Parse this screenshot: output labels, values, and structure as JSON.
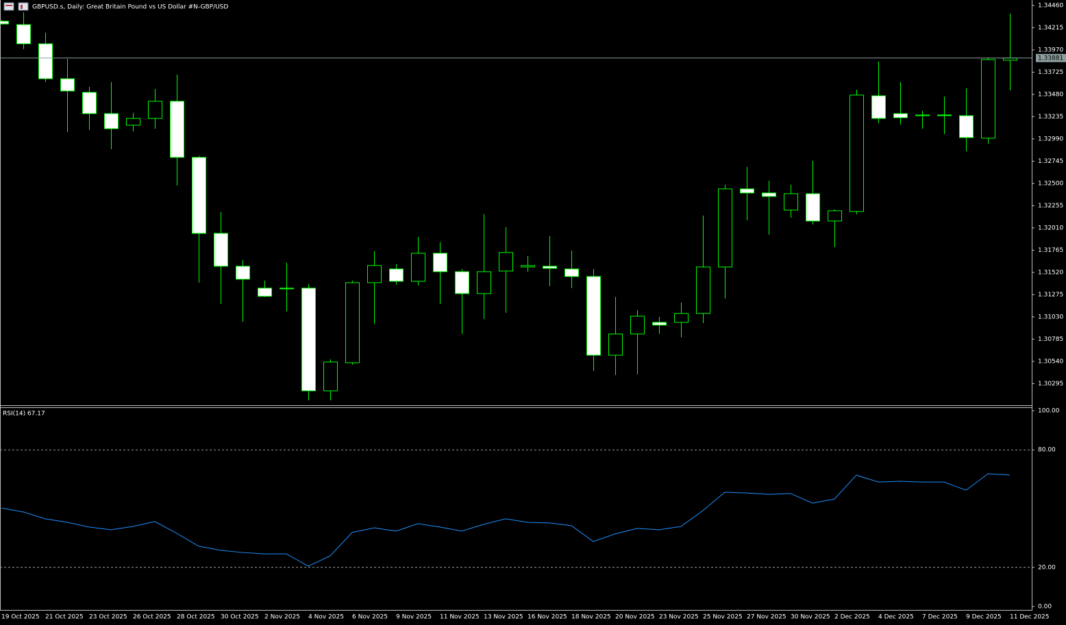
{
  "chart_data": [
    {
      "type": "candlestick",
      "title": "GBPUSD.s, Daily:  Great Britain Pound vs US Dollar #N-GBP/USD",
      "categories": [
        "19 Oct 2025",
        null,
        "21 Oct 2025",
        null,
        "23 Oct 2025",
        null,
        "26 Oct 2025",
        null,
        "28 Oct 2025",
        null,
        "30 Oct 2025",
        null,
        "2 Nov 2025",
        null,
        "4 Nov 2025",
        null,
        "6 Nov 2025",
        null,
        "9 Nov 2025",
        null,
        "11 Nov 2025",
        null,
        "13 Nov 2025",
        null,
        "16 Nov 2025",
        null,
        "18 Nov 2025",
        null,
        "20 Nov 2025",
        null,
        "23 Nov 2025",
        null,
        "25 Nov 2025",
        null,
        "27 Nov 2025",
        null,
        "30 Nov 2025",
        null,
        "2 Dec 2025",
        null,
        "4 Dec 2025",
        null,
        "7 Dec 2025",
        null,
        "9 Dec 2025",
        null,
        "11 Dec 2025"
      ],
      "open": [
        1.34287,
        1.34249,
        1.34038,
        1.33653,
        1.33503,
        1.33269,
        1.33141,
        1.33216,
        1.33405,
        1.32787,
        1.3195,
        1.31588,
        1.31347,
        1.31347,
        1.31347,
        1.30216,
        1.30525,
        1.31407,
        1.31558,
        1.31422,
        1.31731,
        1.31528,
        1.31287,
        1.31535,
        1.3158,
        1.31588,
        1.31558,
        1.31475,
        1.30608,
        1.30842,
        1.3097,
        1.3097,
        1.31068,
        1.3158,
        1.3244,
        1.32395,
        1.32206,
        1.32387,
        1.32086,
        1.32191,
        1.33465,
        1.33269,
        1.33246,
        1.33254,
        1.33246,
        1.32998,
        1.33857
      ],
      "high": [
        1.34302,
        1.34385,
        1.34158,
        1.33872,
        1.33563,
        1.33616,
        1.33277,
        1.3354,
        1.33699,
        1.32802,
        1.32184,
        1.31656,
        1.3143,
        1.31626,
        1.31392,
        1.30563,
        1.3143,
        1.31754,
        1.31611,
        1.31912,
        1.31852,
        1.31558,
        1.32161,
        1.32018,
        1.31701,
        1.3192,
        1.31761,
        1.31558,
        1.3125,
        1.31106,
        1.3103,
        1.31189,
        1.32146,
        1.32485,
        1.32681,
        1.3253,
        1.32485,
        1.32749,
        1.32214,
        1.33533,
        1.33842,
        1.33616,
        1.33299,
        1.33457,
        1.33548,
        1.33887,
        1.3437
      ],
      "low": [
        1.34249,
        1.33978,
        1.33616,
        1.33065,
        1.33088,
        1.32877,
        1.33073,
        1.33103,
        1.32477,
        1.31407,
        1.31174,
        1.30978,
        1.3125,
        1.31091,
        1.30111,
        1.30111,
        1.30503,
        1.30955,
        1.31384,
        1.31377,
        1.31174,
        1.30842,
        1.31008,
        1.31076,
        1.31528,
        1.31369,
        1.31347,
        1.30435,
        1.3039,
        1.30397,
        1.30842,
        1.30804,
        1.30963,
        1.31234,
        1.32093,
        1.31935,
        1.32123,
        1.32048,
        1.31799,
        1.32161,
        1.33163,
        1.33148,
        1.33103,
        1.33043,
        1.32854,
        1.32937,
        1.33525
      ],
      "close": [
        1.34256,
        1.34038,
        1.33653,
        1.33518,
        1.33269,
        1.33103,
        1.33216,
        1.33405,
        1.32787,
        1.3195,
        1.31588,
        1.31445,
        1.31257,
        1.31339,
        1.30216,
        1.30533,
        1.31407,
        1.31596,
        1.31422,
        1.31731,
        1.31528,
        1.31287,
        1.31528,
        1.31739,
        1.31596,
        1.31565,
        1.31475,
        1.30608,
        1.30842,
        1.31038,
        1.3094,
        1.31068,
        1.3158,
        1.3244,
        1.32395,
        1.32357,
        1.32387,
        1.32086,
        1.32199,
        1.33473,
        1.33216,
        1.33224,
        1.33254,
        1.33246,
        1.33005,
        1.33864,
        1.33881
      ],
      "up_color": "#000000",
      "down_color": "#ffffff",
      "outline_color": "#00ff00",
      "last_price": 1.33881,
      "ylim": [
        1.30057,
        1.3452
      ],
      "yticks": [
        {
          "value": 1.3446,
          "label": "1.34460"
        },
        {
          "value": 1.34215,
          "label": "1.34215"
        },
        {
          "value": 1.3397,
          "label": "1.33970"
        },
        {
          "value": 1.33725,
          "label": "1.33725"
        },
        {
          "value": 1.3348,
          "label": "1.33480"
        },
        {
          "value": 1.33235,
          "label": "1.33235"
        },
        {
          "value": 1.3299,
          "label": "1.32990"
        },
        {
          "value": 1.32745,
          "label": "1.32745"
        },
        {
          "value": 1.325,
          "label": "1.32500"
        },
        {
          "value": 1.32255,
          "label": "1.32255"
        },
        {
          "value": 1.3201,
          "label": "1.32010"
        },
        {
          "value": 1.31765,
          "label": "1.31765"
        },
        {
          "value": 1.3152,
          "label": "1.31520"
        },
        {
          "value": 1.31275,
          "label": "1.31275"
        },
        {
          "value": 1.3103,
          "label": "1.31030"
        },
        {
          "value": 1.30785,
          "label": "1.30785"
        },
        {
          "value": 1.3054,
          "label": "1.30540"
        },
        {
          "value": 1.30295,
          "label": "1.30295"
        }
      ]
    },
    {
      "type": "line",
      "title": "RSI(14) 67.17",
      "color": "#1e90ff",
      "values": [
        50.3,
        48.3,
        44.8,
        43.0,
        40.6,
        39.2,
        40.9,
        43.4,
        37.4,
        30.8,
        28.7,
        27.6,
        26.9,
        26.9,
        20.6,
        25.9,
        37.8,
        40.2,
        38.5,
        42.3,
        40.6,
        38.5,
        42.0,
        44.8,
        43.0,
        42.7,
        41.3,
        33.2,
        37.1,
        39.9,
        39.2,
        40.9,
        49.0,
        58.4,
        58.0,
        57.3,
        57.7,
        52.8,
        54.9,
        67.1,
        63.6,
        64.0,
        63.6,
        63.6,
        59.4,
        67.8,
        67.17
      ],
      "levels": [
        80,
        20
      ],
      "ylim": [
        -1.75,
        101.75
      ],
      "yticks": [
        {
          "value": 100,
          "label": "100.00"
        },
        {
          "value": 80,
          "label": "80.00"
        },
        {
          "value": 20,
          "label": "20.00"
        },
        {
          "value": 0,
          "label": "0.00"
        }
      ]
    }
  ]
}
